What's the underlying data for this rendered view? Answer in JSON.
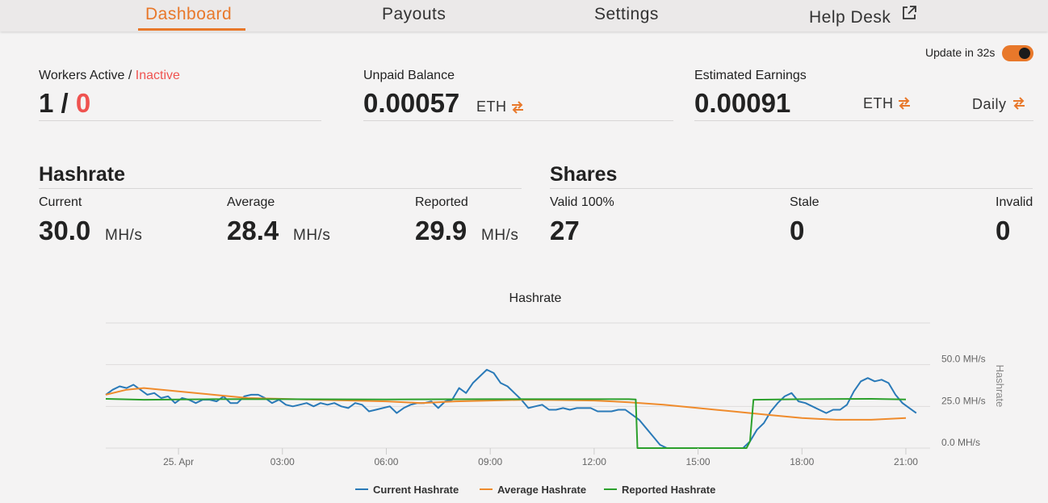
{
  "nav": {
    "dashboard": "Dashboard",
    "payouts": "Payouts",
    "settings": "Settings",
    "helpdesk": "Help Desk"
  },
  "update": {
    "label": "Update in 32s",
    "enabled": true
  },
  "workers": {
    "label_active": "Workers Active",
    "label_sep": " / ",
    "label_inactive": "Inactive",
    "active": "1",
    "sep": " / ",
    "inactive": "0"
  },
  "unpaid": {
    "label": "Unpaid Balance",
    "value": "0.00057",
    "unit": "ETH"
  },
  "estimated": {
    "label": "Estimated Earnings",
    "value": "0.00091",
    "unit": "ETH",
    "period": "Daily"
  },
  "hashrate": {
    "title": "Hashrate",
    "current_label": "Current",
    "current_value": "30.0",
    "current_unit": "MH/s",
    "average_label": "Average",
    "average_value": "28.4",
    "average_unit": "MH/s",
    "reported_label": "Reported",
    "reported_value": "29.9",
    "reported_unit": "MH/s"
  },
  "shares": {
    "title": "Shares",
    "valid_label": "Valid 100%",
    "valid_value": "27",
    "stale_label": "Stale",
    "stale_value": "0",
    "invalid_label": "Invalid",
    "invalid_value": "0"
  },
  "colors": {
    "accent": "#e8782a",
    "inactive": "#ef5350",
    "current": "#2a7ab8",
    "average": "#ef8b2c",
    "reported": "#2ca02c"
  },
  "chart_data": {
    "type": "line",
    "title": "Hashrate",
    "ylabel": "Hashrate",
    "y_ticks": [
      "0.0 MH/s",
      "25.0 MH/s",
      "50.0 MH/s"
    ],
    "x_ticks": [
      {
        "label": "25. Apr",
        "hour": 0
      },
      {
        "label": "03:00",
        "hour": 3
      },
      {
        "label": "06:00",
        "hour": 6
      },
      {
        "label": "09:00",
        "hour": 9
      },
      {
        "label": "12:00",
        "hour": 12
      },
      {
        "label": "15:00",
        "hour": 15
      },
      {
        "label": "18:00",
        "hour": 18
      },
      {
        "label": "21:00",
        "hour": 21
      }
    ],
    "xlim": [
      -2.1,
      21.7
    ],
    "ylim": [
      0,
      75
    ],
    "series": [
      {
        "name": "Current Hashrate",
        "color": "#2a7ab8",
        "points": [
          [
            -2.1,
            32
          ],
          [
            -1.9,
            35
          ],
          [
            -1.7,
            37
          ],
          [
            -1.5,
            36
          ],
          [
            -1.3,
            38
          ],
          [
            -1.1,
            35
          ],
          [
            -0.9,
            32
          ],
          [
            -0.7,
            33
          ],
          [
            -0.5,
            30
          ],
          [
            -0.3,
            31
          ],
          [
            -0.1,
            27
          ],
          [
            0.1,
            30
          ],
          [
            0.3,
            29
          ],
          [
            0.5,
            27
          ],
          [
            0.7,
            29
          ],
          [
            0.9,
            29
          ],
          [
            1.1,
            28
          ],
          [
            1.3,
            31
          ],
          [
            1.5,
            27
          ],
          [
            1.7,
            27
          ],
          [
            1.9,
            31
          ],
          [
            2.1,
            32
          ],
          [
            2.3,
            32
          ],
          [
            2.5,
            30
          ],
          [
            2.7,
            27
          ],
          [
            2.9,
            29
          ],
          [
            3.1,
            26
          ],
          [
            3.3,
            25
          ],
          [
            3.5,
            26
          ],
          [
            3.7,
            27
          ],
          [
            3.9,
            25
          ],
          [
            4.1,
            27
          ],
          [
            4.3,
            26
          ],
          [
            4.5,
            27
          ],
          [
            4.7,
            25
          ],
          [
            4.9,
            24
          ],
          [
            5.1,
            27
          ],
          [
            5.3,
            26
          ],
          [
            5.5,
            22
          ],
          [
            5.7,
            23
          ],
          [
            5.9,
            24
          ],
          [
            6.1,
            25
          ],
          [
            6.3,
            21
          ],
          [
            6.5,
            24
          ],
          [
            6.7,
            26
          ],
          [
            6.9,
            27
          ],
          [
            7.1,
            27
          ],
          [
            7.3,
            28
          ],
          [
            7.5,
            24
          ],
          [
            7.7,
            28
          ],
          [
            7.9,
            29
          ],
          [
            8.1,
            36
          ],
          [
            8.3,
            33
          ],
          [
            8.5,
            39
          ],
          [
            8.7,
            43
          ],
          [
            8.9,
            47
          ],
          [
            9.1,
            45
          ],
          [
            9.3,
            39
          ],
          [
            9.5,
            37
          ],
          [
            9.7,
            33
          ],
          [
            9.9,
            29
          ],
          [
            10.1,
            24
          ],
          [
            10.3,
            25
          ],
          [
            10.5,
            26
          ],
          [
            10.7,
            23
          ],
          [
            10.9,
            23
          ],
          [
            11.1,
            24
          ],
          [
            11.3,
            23
          ],
          [
            11.5,
            24
          ],
          [
            11.7,
            24
          ],
          [
            11.9,
            24
          ],
          [
            12.1,
            22
          ],
          [
            12.3,
            22
          ],
          [
            12.5,
            22
          ],
          [
            12.7,
            23
          ],
          [
            12.9,
            23
          ],
          [
            13.1,
            20
          ],
          [
            13.3,
            17
          ],
          [
            13.5,
            12
          ],
          [
            13.7,
            7
          ],
          [
            13.9,
            2
          ],
          [
            14.1,
            0
          ],
          [
            14.3,
            0
          ],
          [
            14.5,
            0
          ],
          [
            14.7,
            0
          ],
          [
            14.9,
            0
          ],
          [
            15.1,
            0
          ],
          [
            15.3,
            0
          ],
          [
            15.5,
            0
          ],
          [
            15.7,
            0
          ],
          [
            15.9,
            0
          ],
          [
            16.1,
            0
          ],
          [
            16.3,
            0
          ],
          [
            16.5,
            4
          ],
          [
            16.7,
            11
          ],
          [
            16.9,
            15
          ],
          [
            17.1,
            22
          ],
          [
            17.3,
            27
          ],
          [
            17.5,
            31
          ],
          [
            17.7,
            33
          ],
          [
            17.9,
            28
          ],
          [
            18.1,
            27
          ],
          [
            18.3,
            25
          ],
          [
            18.5,
            23
          ],
          [
            18.7,
            21
          ],
          [
            18.9,
            23
          ],
          [
            19.1,
            23
          ],
          [
            19.3,
            26
          ],
          [
            19.5,
            34
          ],
          [
            19.7,
            40
          ],
          [
            19.9,
            42
          ],
          [
            20.1,
            40
          ],
          [
            20.3,
            41
          ],
          [
            20.5,
            39
          ],
          [
            20.7,
            32
          ],
          [
            20.9,
            27
          ],
          [
            21.1,
            24
          ],
          [
            21.3,
            21
          ]
        ]
      },
      {
        "name": "Average Hashrate",
        "color": "#ef8b2c",
        "points": [
          [
            -2.1,
            32
          ],
          [
            -1.5,
            35
          ],
          [
            -1,
            36
          ],
          [
            0,
            34
          ],
          [
            1,
            32
          ],
          [
            2,
            30
          ],
          [
            3,
            29.5
          ],
          [
            4,
            29
          ],
          [
            5,
            28.5
          ],
          [
            6,
            28
          ],
          [
            7,
            27
          ],
          [
            8,
            28
          ],
          [
            9,
            28.5
          ],
          [
            10,
            29
          ],
          [
            11,
            28.8
          ],
          [
            12,
            28.5
          ],
          [
            13,
            27.5
          ],
          [
            14,
            26
          ],
          [
            15,
            24
          ],
          [
            16,
            22
          ],
          [
            17,
            20
          ],
          [
            18,
            18
          ],
          [
            19,
            17
          ],
          [
            20,
            17
          ],
          [
            21,
            18
          ]
        ]
      },
      {
        "name": "Reported Hashrate",
        "color": "#2ca02c",
        "points": [
          [
            -2.1,
            29.5
          ],
          [
            -1,
            29
          ],
          [
            1,
            29.3
          ],
          [
            3,
            29.3
          ],
          [
            6,
            29.2
          ],
          [
            9,
            29.3
          ],
          [
            10,
            29.3
          ],
          [
            11,
            29.3
          ],
          [
            12,
            29.3
          ],
          [
            13,
            29.3
          ],
          [
            13.2,
            29.2
          ],
          [
            13.25,
            0
          ],
          [
            16.4,
            0
          ],
          [
            16.5,
            4
          ],
          [
            16.6,
            29
          ],
          [
            18,
            29.3
          ],
          [
            20,
            29.5
          ],
          [
            21,
            29.2
          ]
        ]
      }
    ]
  }
}
